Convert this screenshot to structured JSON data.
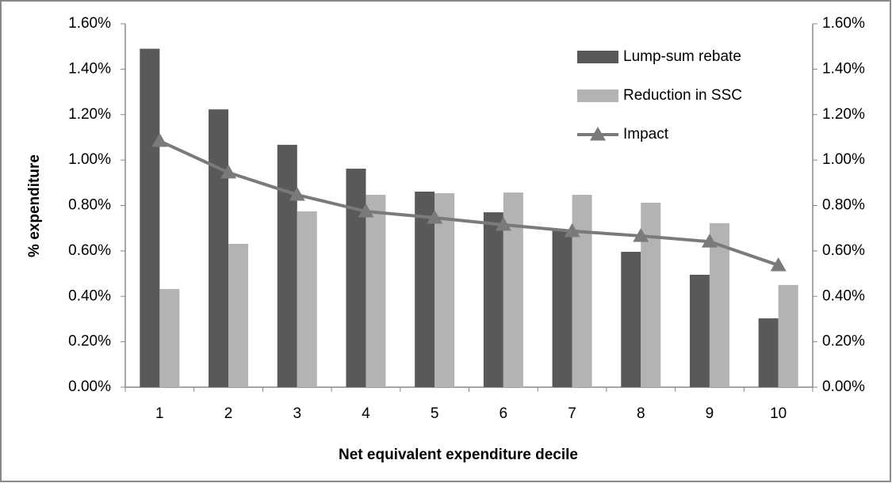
{
  "chart_data": {
    "type": "bar",
    "x_label": "Net equivalent expenditure decile",
    "y_label": "% expenditure",
    "categories": [
      1,
      2,
      3,
      4,
      5,
      6,
      7,
      8,
      9,
      10
    ],
    "series": [
      {
        "name": "Lump-sum rebate",
        "type": "bar",
        "color": "#595959",
        "values": [
          1.49,
          1.223,
          1.067,
          0.962,
          0.861,
          0.77,
          0.69,
          0.596,
          0.495,
          0.303
        ]
      },
      {
        "name": "Reduction in SSC",
        "type": "bar",
        "color": "#b3b3b3",
        "values": [
          0.432,
          0.631,
          0.774,
          0.847,
          0.854,
          0.857,
          0.847,
          0.812,
          0.722,
          0.45
        ]
      },
      {
        "name": "Impact",
        "type": "line",
        "axis": "y2",
        "color": "#7a7a7a",
        "values": [
          1.084,
          0.945,
          0.847,
          0.774,
          0.746,
          0.715,
          0.687,
          0.666,
          0.641,
          0.537
        ]
      }
    ],
    "ylim": [
      0,
      1.6
    ],
    "yticks": [
      {
        "value": 0,
        "label": "0.00%"
      },
      {
        "value": 0.2,
        "label": "0.20%"
      },
      {
        "value": 0.4,
        "label": "0.40%"
      },
      {
        "value": 0.6,
        "label": "0.60%"
      },
      {
        "value": 0.8,
        "label": "0.80%"
      },
      {
        "value": 1.0,
        "label": "1.00%"
      },
      {
        "value": 1.2,
        "label": "1.20%"
      },
      {
        "value": 1.4,
        "label": "1.40%"
      },
      {
        "value": 1.6,
        "label": "1.60%"
      }
    ],
    "y2lim": [
      0,
      1.6
    ],
    "y2ticks": [
      {
        "value": 0,
        "label": "0.00%"
      },
      {
        "value": 0.2,
        "label": "0.20%"
      },
      {
        "value": 0.4,
        "label": "0.40%"
      },
      {
        "value": 0.6,
        "label": "0.60%"
      },
      {
        "value": 0.8,
        "label": "0.80%"
      },
      {
        "value": 1.0,
        "label": "1.00%"
      },
      {
        "value": 1.2,
        "label": "1.20%"
      },
      {
        "value": 1.4,
        "label": "1.40%"
      },
      {
        "value": 1.6,
        "label": "1.60%"
      }
    ],
    "grid": false,
    "legend": "top-right"
  }
}
